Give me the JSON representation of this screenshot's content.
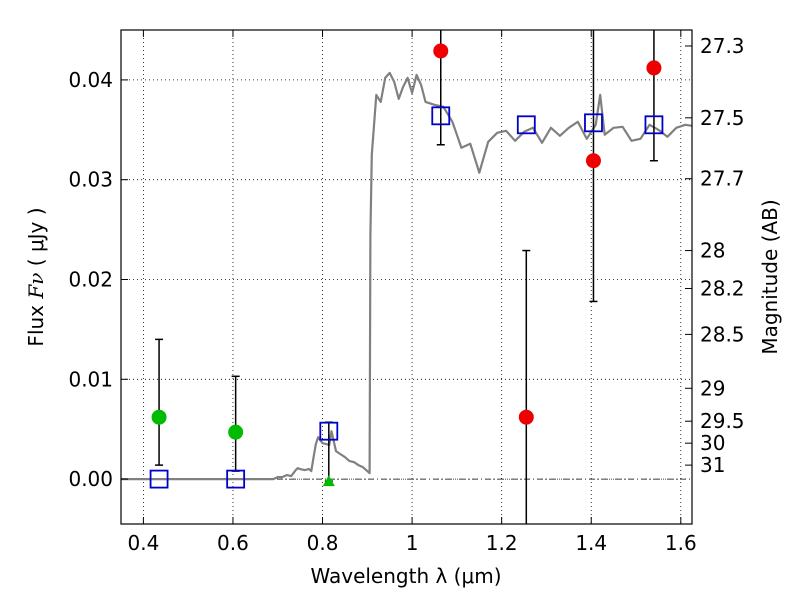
{
  "chart_data": {
    "type": "scatter",
    "xlabel": "Wavelength  λ (μm)",
    "ylabel_prefix": "Flux  ",
    "ylabel_var": "Fν",
    "ylabel_suffix": "  ( μJy )",
    "y2label": "Magnitude (AB)",
    "xlim": [
      0.35,
      1.625
    ],
    "ylim": [
      -0.0045,
      0.045
    ],
    "grid": true,
    "x_ticks": [
      {
        "value": 0.4,
        "label": "0.4"
      },
      {
        "value": 0.6,
        "label": "0.6"
      },
      {
        "value": 0.8,
        "label": "0.8"
      },
      {
        "value": 1.0,
        "label": "1"
      },
      {
        "value": 1.2,
        "label": "1.2"
      },
      {
        "value": 1.4,
        "label": "1.4"
      },
      {
        "value": 1.6,
        "label": "1.6"
      }
    ],
    "y_ticks": [
      {
        "value": 0.0,
        "label": "0.00"
      },
      {
        "value": 0.01,
        "label": "0.01"
      },
      {
        "value": 0.02,
        "label": "0.02"
      },
      {
        "value": 0.03,
        "label": "0.03"
      },
      {
        "value": 0.04,
        "label": "0.04"
      }
    ],
    "mag_ticks": [
      {
        "flux": 0.0434,
        "label": "27.3"
      },
      {
        "flux": 0.0362,
        "label": "27.5"
      },
      {
        "flux": 0.0301,
        "label": "27.7"
      },
      {
        "flux": 0.0229,
        "label": "28"
      },
      {
        "flux": 0.0191,
        "label": "28.2"
      },
      {
        "flux": 0.0145,
        "label": "28.5"
      },
      {
        "flux": 0.0091,
        "label": "29"
      },
      {
        "flux": 0.0058,
        "label": "29.5"
      },
      {
        "flux": 0.0036,
        "label": "30"
      },
      {
        "flux": 0.0014,
        "label": "31"
      }
    ],
    "zero_line": 0.0,
    "sed_model": {
      "color": "#808080",
      "x": [
        0.35,
        0.5,
        0.69,
        0.7,
        0.71,
        0.72,
        0.73,
        0.74,
        0.745,
        0.75,
        0.76,
        0.77,
        0.775,
        0.78,
        0.785,
        0.79,
        0.8,
        0.81,
        0.815,
        0.82,
        0.83,
        0.84,
        0.85,
        0.86,
        0.87,
        0.88,
        0.89,
        0.9,
        0.905,
        0.907,
        0.91,
        0.92,
        0.93,
        0.94,
        0.95,
        0.96,
        0.97,
        0.98,
        0.99,
        1.0,
        1.01,
        1.02,
        1.03,
        1.05,
        1.07,
        1.09,
        1.11,
        1.13,
        1.15,
        1.17,
        1.19,
        1.21,
        1.23,
        1.25,
        1.27,
        1.29,
        1.31,
        1.33,
        1.35,
        1.37,
        1.39,
        1.41,
        1.42,
        1.43,
        1.45,
        1.47,
        1.49,
        1.51,
        1.53,
        1.55,
        1.57,
        1.59,
        1.61,
        1.625
      ],
      "y": [
        0.0,
        0.0,
        0.0,
        0.0002,
        0.0002,
        0.0004,
        0.0003,
        0.0009,
        0.0011,
        0.001,
        0.0009,
        0.001,
        0.0008,
        0.0022,
        0.0035,
        0.0042,
        0.0036,
        0.0035,
        0.0034,
        0.0048,
        0.0028,
        0.0025,
        0.0022,
        0.0018,
        0.0017,
        0.0014,
        0.0012,
        0.0008,
        0.0006,
        0.0245,
        0.0325,
        0.0385,
        0.0378,
        0.0402,
        0.0407,
        0.0398,
        0.0381,
        0.0393,
        0.0402,
        0.0387,
        0.0405,
        0.0395,
        0.0378,
        0.0375,
        0.0373,
        0.0358,
        0.0332,
        0.0336,
        0.0307,
        0.0338,
        0.0347,
        0.0349,
        0.0339,
        0.0348,
        0.0352,
        0.0337,
        0.0352,
        0.0344,
        0.0352,
        0.0358,
        0.0341,
        0.0355,
        0.0385,
        0.0345,
        0.0352,
        0.0353,
        0.0339,
        0.0341,
        0.0355,
        0.035,
        0.0343,
        0.0352,
        0.0355,
        0.0354
      ]
    },
    "series": [
      {
        "marker": "square-open",
        "color": "#0000cc",
        "points": [
          {
            "x": 0.435,
            "y": 0.0
          },
          {
            "x": 0.606,
            "y": 0.0
          },
          {
            "x": 0.814,
            "y": 0.0048
          },
          {
            "x": 1.064,
            "y": 0.0364
          },
          {
            "x": 1.255,
            "y": 0.0355
          },
          {
            "x": 1.405,
            "y": 0.0357
          },
          {
            "x": 1.54,
            "y": 0.0355
          }
        ]
      },
      {
        "marker": "circle",
        "color": "#00bb00",
        "points": [
          {
            "x": 0.435,
            "y": 0.0062,
            "err_low": 0.0014,
            "err_high": 0.014
          },
          {
            "x": 0.606,
            "y": 0.0047,
            "err_low": 0.0008,
            "err_high": 0.0103
          }
        ]
      },
      {
        "marker": "triangle",
        "color": "#00bb00",
        "points": [
          {
            "x": 0.814,
            "y": -0.0002,
            "err_low": -0.0002,
            "err_high": 0.0057
          }
        ]
      },
      {
        "marker": "circle",
        "color": "#ee0000",
        "points": [
          {
            "x": 1.064,
            "y": 0.0429,
            "err_low": 0.0335,
            "err_high": 0.045
          },
          {
            "x": 1.255,
            "y": 0.0062,
            "err_low": -0.0045,
            "err_high": 0.0229
          },
          {
            "x": 1.405,
            "y": 0.0319,
            "err_low": 0.0178,
            "err_high": 0.045
          },
          {
            "x": 1.54,
            "y": 0.0412,
            "err_low": 0.0319,
            "err_high": 0.045
          }
        ]
      }
    ]
  }
}
